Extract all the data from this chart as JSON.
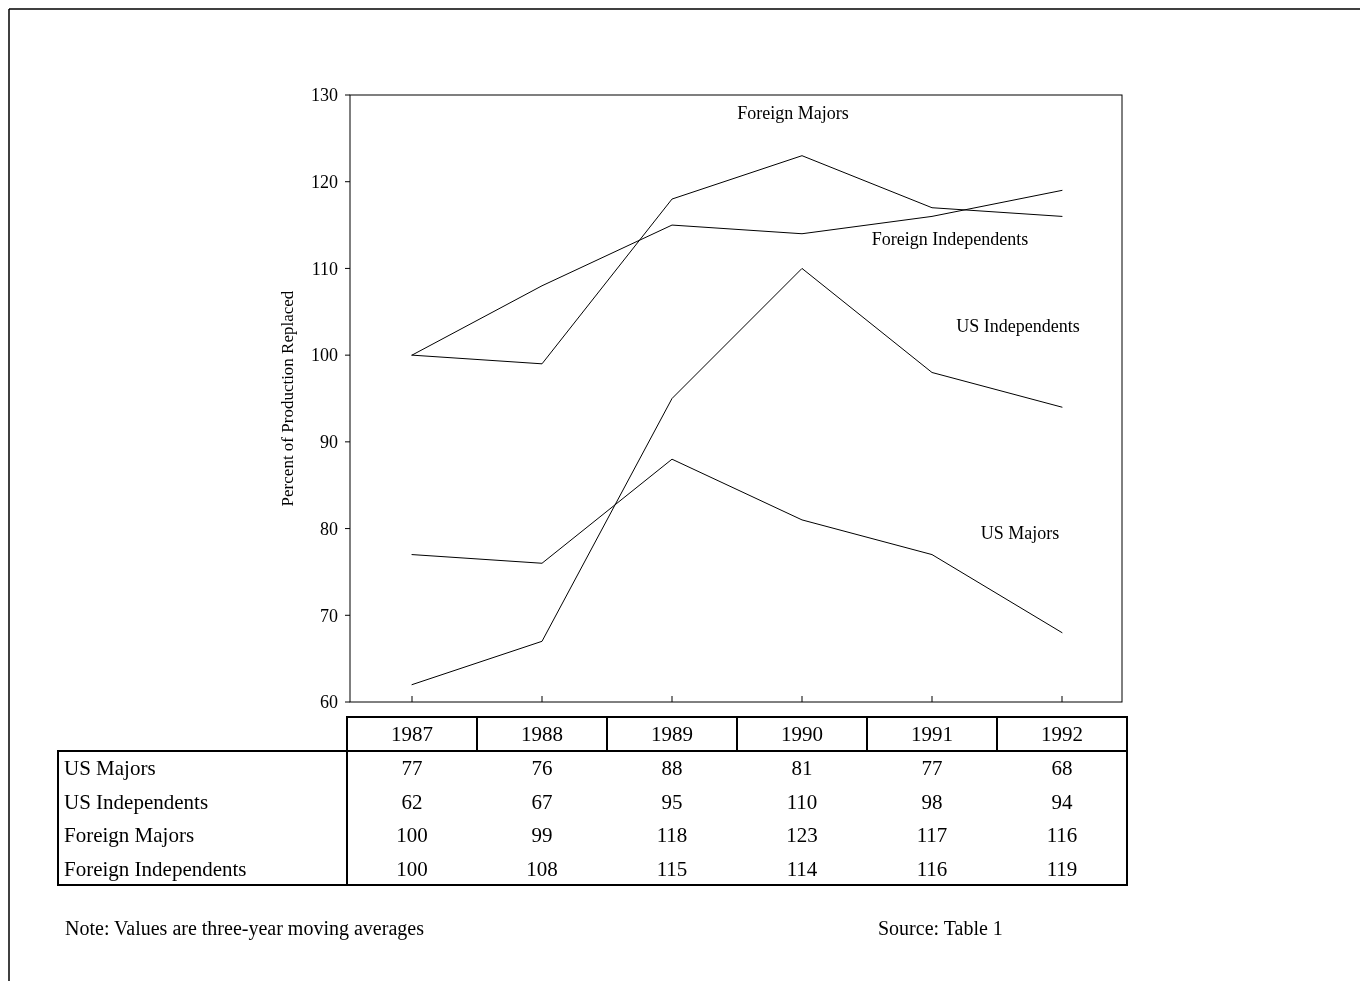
{
  "chart_data": {
    "type": "line",
    "ylabel": "Percent of Production Replaced",
    "categories": [
      "1987",
      "1988",
      "1989",
      "1990",
      "1991",
      "1992"
    ],
    "series": [
      {
        "name": "US Majors",
        "color": "#000000",
        "values": [
          77,
          76,
          88,
          81,
          77,
          68
        ]
      },
      {
        "name": "US Independents",
        "color": "#000000",
        "values": [
          62,
          67,
          95,
          110,
          98,
          94
        ]
      },
      {
        "name": "Foreign Majors",
        "color": "#000000",
        "values": [
          100,
          99,
          118,
          123,
          117,
          116
        ]
      },
      {
        "name": "Foreign Independents",
        "color": "#000000",
        "values": [
          100,
          108,
          115,
          114,
          116,
          119
        ]
      }
    ],
    "ylim": [
      60,
      130
    ],
    "yticks": [
      60,
      70,
      80,
      90,
      100,
      110,
      120,
      130
    ],
    "grid": false,
    "legend": false,
    "data_labels": true,
    "marker": "none",
    "line_style": "solid",
    "annotations": [
      "Note: Values are three-year moving averages",
      "Source: Table 1"
    ]
  }
}
